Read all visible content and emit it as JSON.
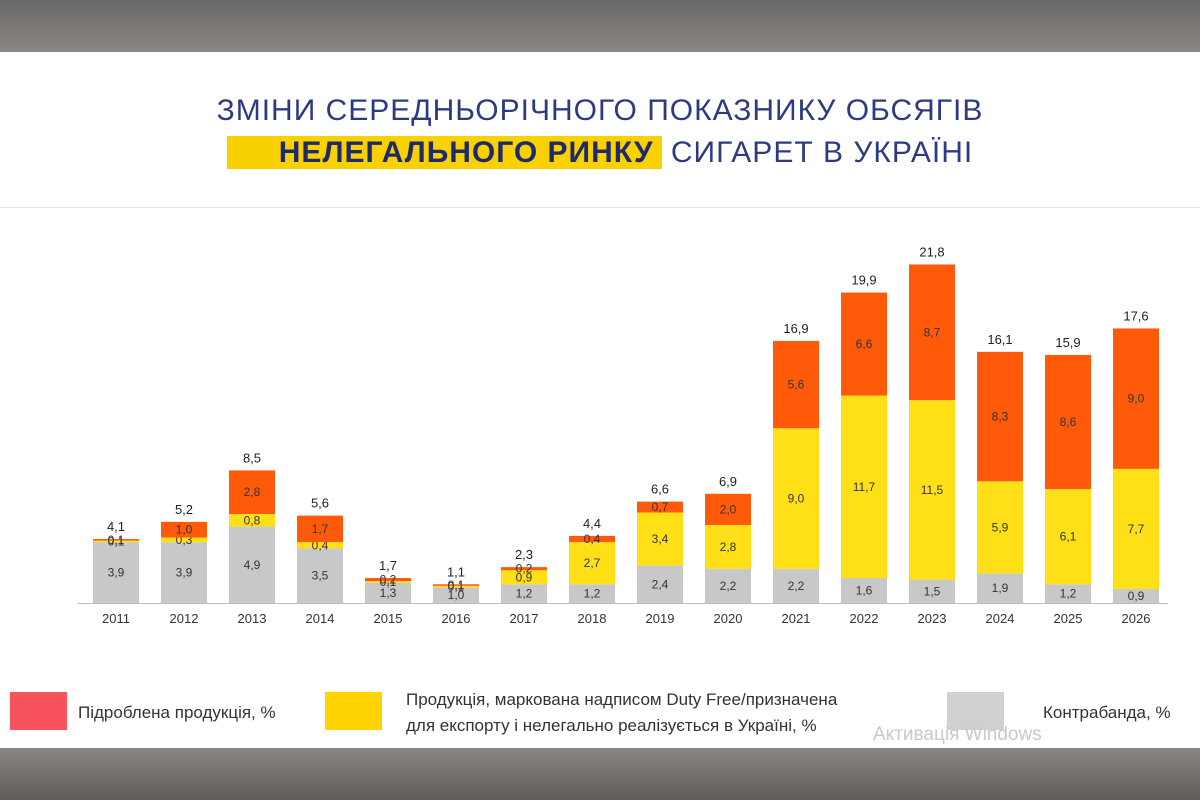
{
  "title": {
    "line1": "ЗМІНИ СЕРЕДНЬОРІЧНОГО ПОКАЗНИКУ ОБСЯГІВ",
    "highlight": "НЕЛЕГАЛЬНОГО РИНКУ",
    "line2_rest": " СИГАРЕТ В УКРАЇНІ"
  },
  "watermark": "Активація Windows",
  "colors": {
    "counterfeit": "#ff5a0a",
    "duty_free": "#ffe016",
    "contraband": "#c8c8c8",
    "legend_counterfeit": "#f8535c",
    "legend_duty_free": "#ffd400",
    "legend_contraband": "#d0d0d0"
  },
  "legend": {
    "counterfeit": "Підроблена продукція, %",
    "duty_free_line1": "Продукція, маркована надписом Duty Free/призначена",
    "duty_free_line2": "для експорту і нелегально реалізується в Україні, %",
    "contraband": "Контрабанда, %"
  },
  "chart_data": {
    "type": "bar",
    "stacked": true,
    "categories": [
      "2011",
      "2012",
      "2013",
      "2014",
      "2015",
      "2016",
      "2017",
      "2018",
      "2019",
      "2020",
      "2021",
      "2022",
      "2023",
      "2024",
      "2025",
      "2026"
    ],
    "series": [
      {
        "name": "Контрабанда, %",
        "values": [
          3.9,
          3.9,
          4.9,
          3.5,
          1.3,
          1.0,
          1.2,
          1.2,
          2.4,
          2.2,
          2.2,
          1.6,
          1.5,
          1.9,
          1.2,
          0.9
        ],
        "labels": [
          "3,9",
          "3,9",
          "4,9",
          "3,5",
          "1,3",
          "1,0",
          "1,2",
          "1,2",
          "2,4",
          "2,2",
          "2,2",
          "1,6",
          "1,5",
          "1,9",
          "1,2",
          "0,9"
        ]
      },
      {
        "name": "Продукція, маркована надписом Duty Free/призначена для експорту і нелегально реалізується в Україні, %",
        "values": [
          0.1,
          0.3,
          0.8,
          0.4,
          0.1,
          0.1,
          0.9,
          2.7,
          3.4,
          2.8,
          9.0,
          11.7,
          11.5,
          5.9,
          6.1,
          7.7
        ],
        "labels": [
          "0,1",
          "0,3",
          "0,8",
          "0,4",
          "0,1",
          "0,1",
          "0,9",
          "2,7",
          "3,4",
          "2,8",
          "9,0",
          "11,7",
          "11,5",
          "5,9",
          "6,1",
          "7,7"
        ]
      },
      {
        "name": "Підроблена продукція, %",
        "values": [
          0.1,
          1.0,
          2.8,
          1.7,
          0.2,
          0.1,
          0.2,
          0.4,
          0.7,
          2.0,
          5.6,
          6.6,
          8.7,
          8.3,
          8.6,
          9.0
        ],
        "labels": [
          "0,1",
          "1,0",
          "2,8",
          "1,7",
          "0,2",
          "0,1",
          "0,2",
          "0,4",
          "0,7",
          "2,0",
          "5,6",
          "6,6",
          "8,7",
          "8,3",
          "8,6",
          "9,0"
        ]
      }
    ],
    "totals": [
      4.1,
      5.2,
      8.5,
      5.6,
      1.7,
      1.1,
      2.3,
      4.4,
      6.6,
      6.9,
      16.9,
      19.9,
      21.8,
      16.1,
      15.9,
      17.6
    ],
    "total_labels": [
      "4,1",
      "5,2",
      "8,5",
      "5,6",
      "1,7",
      "1,1",
      "2,3",
      "4,4",
      "6,6",
      "6,9",
      "16,9",
      "19,9",
      "21,8",
      "16,1",
      "15,9",
      "17,6"
    ],
    "ylim": [
      0,
      22
    ],
    "grid": false,
    "legend_position": "bottom"
  }
}
